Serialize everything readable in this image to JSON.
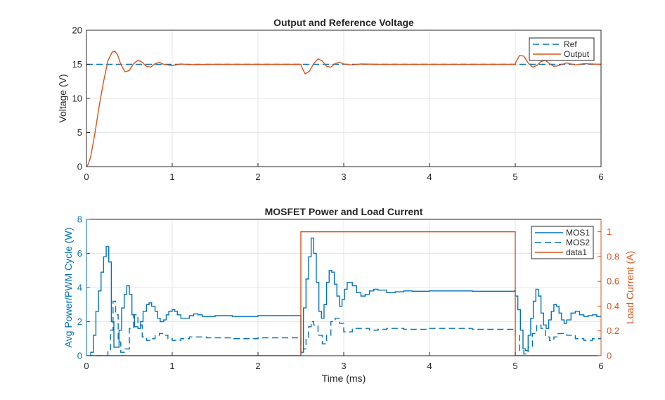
{
  "colors": {
    "ref": "#0072BD",
    "output": "#D95319",
    "mos": "#0072BD",
    "current": "#D95319",
    "grid": "#e6e6e6",
    "axis": "#262626"
  },
  "chart_data": [
    {
      "type": "line",
      "title": "Output and Reference Voltage",
      "xlabel": "",
      "ylabel": "Voltage (V)",
      "xlim": [
        0,
        6
      ],
      "ylim": [
        0,
        20
      ],
      "xticks": [
        0,
        1,
        2,
        3,
        4,
        5,
        6
      ],
      "yticks": [
        0,
        5,
        10,
        15,
        20
      ],
      "grid": true,
      "legend_position": "top-right",
      "series": [
        {
          "name": "Ref",
          "style": "dashed",
          "x": [
            0,
            6
          ],
          "y": [
            15,
            15
          ]
        },
        {
          "name": "Output",
          "style": "solid",
          "x": [
            0,
            0.02,
            0.05,
            0.1,
            0.15,
            0.2,
            0.25,
            0.3,
            0.33,
            0.36,
            0.4,
            0.45,
            0.5,
            0.55,
            0.6,
            0.65,
            0.7,
            0.75,
            0.8,
            0.85,
            0.9,
            1.0,
            1.1,
            1.2,
            1.5,
            2.0,
            2.5,
            2.51,
            2.55,
            2.6,
            2.65,
            2.7,
            2.75,
            2.8,
            2.85,
            2.9,
            2.95,
            3.0,
            3.1,
            3.2,
            3.4,
            4.0,
            5.0,
            5.01,
            5.05,
            5.1,
            5.15,
            5.2,
            5.25,
            5.3,
            5.35,
            5.4,
            5.45,
            5.5,
            5.6,
            5.7,
            5.8,
            6.0
          ],
          "y": [
            0,
            0.3,
            1.5,
            5,
            9,
            12.5,
            15.5,
            16.8,
            16.9,
            16.5,
            15,
            13.9,
            14.1,
            15.1,
            15.6,
            15.3,
            14.7,
            14.6,
            15.1,
            15.3,
            15,
            14.8,
            15.05,
            14.95,
            15,
            15,
            15,
            14.6,
            13.6,
            14,
            15.1,
            15.8,
            15.5,
            14.7,
            14.6,
            15.1,
            15.3,
            15.05,
            14.9,
            15.05,
            15,
            15,
            15,
            15.4,
            16.3,
            16.2,
            15.2,
            14.6,
            14.8,
            15.4,
            15.6,
            15.1,
            14.7,
            14.8,
            15.2,
            14.9,
            15.1,
            15
          ]
        }
      ]
    },
    {
      "type": "line",
      "title": "MOSFET Power and Load Current",
      "xlabel": "Time (ms)",
      "ylabel_left": "Avg Power/PWM Cycle (W)",
      "ylabel_right": "Load Current (A)",
      "xlim": [
        0,
        6
      ],
      "ylim_left": [
        0,
        8
      ],
      "ylim_right": [
        0,
        1.1
      ],
      "xticks": [
        0,
        1,
        2,
        3,
        4,
        5,
        6
      ],
      "yticks_left": [
        0,
        2,
        4,
        6,
        8
      ],
      "yticks_right": [
        0,
        0.2,
        0.4,
        0.6,
        0.8,
        1
      ],
      "ytick_labels_right": [
        "0",
        "0.2",
        "0.4",
        "0.6",
        "0.8",
        "1"
      ],
      "grid": true,
      "legend_position": "top-right",
      "series": [
        {
          "name": "MOS1",
          "axis": "left",
          "style": "solid",
          "step": true,
          "x": [
            0,
            0.05,
            0.08,
            0.11,
            0.14,
            0.17,
            0.2,
            0.23,
            0.26,
            0.29,
            0.32,
            0.38,
            0.41,
            0.44,
            0.47,
            0.5,
            0.53,
            0.56,
            0.6,
            0.63,
            0.66,
            0.7,
            0.73,
            0.76,
            0.8,
            0.83,
            0.86,
            0.9,
            0.93,
            0.96,
            1.0,
            1.03,
            1.06,
            1.1,
            1.15,
            1.2,
            1.25,
            1.3,
            1.35,
            1.4,
            1.5,
            1.7,
            2.0,
            2.49,
            2.5,
            2.53,
            2.56,
            2.59,
            2.62,
            2.65,
            2.68,
            2.71,
            2.74,
            2.77,
            2.8,
            2.83,
            2.86,
            2.89,
            2.92,
            2.95,
            2.98,
            3.01,
            3.04,
            3.07,
            3.1,
            3.15,
            3.2,
            3.25,
            3.3,
            3.35,
            3.4,
            3.5,
            3.6,
            3.7,
            3.8,
            4.0,
            4.5,
            4.99,
            5.0,
            5.03,
            5.06,
            5.09,
            5.12,
            5.15,
            5.18,
            5.21,
            5.24,
            5.27,
            5.3,
            5.33,
            5.36,
            5.39,
            5.42,
            5.45,
            5.48,
            5.51,
            5.54,
            5.57,
            5.6,
            5.65,
            5.7,
            5.75,
            5.8,
            5.85,
            5.9,
            5.95,
            6.0
          ],
          "y": [
            0,
            0.2,
            1.2,
            2.6,
            3.8,
            4.9,
            5.8,
            6.4,
            5.5,
            2.0,
            0.5,
            1.5,
            2.8,
            3.6,
            4.1,
            3.6,
            2.4,
            1.7,
            1.6,
            2.0,
            2.6,
            3.0,
            3.1,
            2.9,
            2.6,
            2.2,
            2.0,
            2.1,
            2.4,
            2.6,
            2.7,
            2.6,
            2.4,
            2.2,
            2.2,
            2.35,
            2.45,
            2.4,
            2.3,
            2.3,
            2.35,
            2.3,
            2.35,
            2.35,
            0.2,
            2.8,
            4.5,
            5.8,
            6.9,
            6.0,
            4.3,
            2.6,
            2.2,
            3.0,
            4.3,
            5.0,
            4.9,
            4.2,
            3.5,
            2.9,
            3.3,
            3.9,
            4.3,
            4.3,
            4.1,
            3.7,
            3.5,
            3.6,
            3.8,
            3.9,
            3.85,
            3.7,
            3.75,
            3.8,
            3.78,
            3.8,
            3.78,
            3.8,
            3.5,
            2.7,
            1.5,
            0.4,
            0.3,
            1.2,
            2.2,
            3.2,
            3.9,
            3.5,
            2.5,
            1.8,
            1.6,
            2.1,
            2.6,
            3.0,
            2.9,
            2.5,
            2.1,
            1.9,
            2.1,
            2.5,
            2.6,
            2.4,
            2.3,
            2.35,
            2.4,
            2.3,
            2.35
          ]
        },
        {
          "name": "MOS2",
          "axis": "left",
          "style": "dashed",
          "step": true,
          "x": [
            0,
            0.25,
            0.28,
            0.31,
            0.34,
            0.37,
            0.4,
            0.45,
            0.5,
            0.55,
            0.6,
            0.65,
            0.7,
            0.75,
            0.8,
            0.85,
            0.9,
            0.95,
            1.0,
            1.1,
            1.2,
            1.3,
            1.4,
            1.5,
            1.7,
            2.0,
            2.49,
            2.5,
            2.53,
            2.56,
            2.59,
            2.62,
            2.65,
            2.7,
            2.75,
            2.8,
            2.85,
            2.9,
            2.95,
            3.0,
            3.1,
            3.2,
            3.3,
            3.4,
            3.5,
            3.7,
            4.0,
            4.5,
            4.99,
            5.0,
            5.05,
            5.1,
            5.15,
            5.2,
            5.25,
            5.3,
            5.35,
            5.4,
            5.45,
            5.5,
            5.6,
            5.7,
            5.8,
            5.9,
            6.0
          ],
          "y": [
            0,
            0.3,
            1.5,
            3.2,
            2.4,
            0.8,
            0.2,
            0.4,
            1.6,
            2.4,
            1.8,
            1.1,
            0.9,
            1.0,
            1.2,
            1.3,
            1.2,
            1.0,
            0.9,
            1.0,
            1.1,
            1.1,
            1.05,
            1.05,
            1.0,
            1.05,
            1.05,
            0.1,
            0.4,
            1.0,
            1.7,
            2.0,
            1.8,
            1.2,
            0.7,
            1.2,
            2.0,
            2.2,
            1.9,
            1.4,
            1.6,
            1.6,
            1.5,
            1.55,
            1.6,
            1.55,
            1.6,
            1.55,
            1.6,
            1.2,
            0.3,
            0.1,
            0.5,
            1.3,
            1.8,
            1.6,
            1.1,
            0.9,
            1.1,
            1.3,
            1.2,
            1.0,
            0.9,
            1.0,
            1.1
          ]
        },
        {
          "name": "data1",
          "axis": "right",
          "style": "solid",
          "step": true,
          "x": [
            0,
            2.5,
            2.5,
            5.0,
            5.0,
            6.0
          ],
          "y": [
            0,
            0,
            1,
            1,
            0,
            0
          ]
        }
      ]
    }
  ]
}
